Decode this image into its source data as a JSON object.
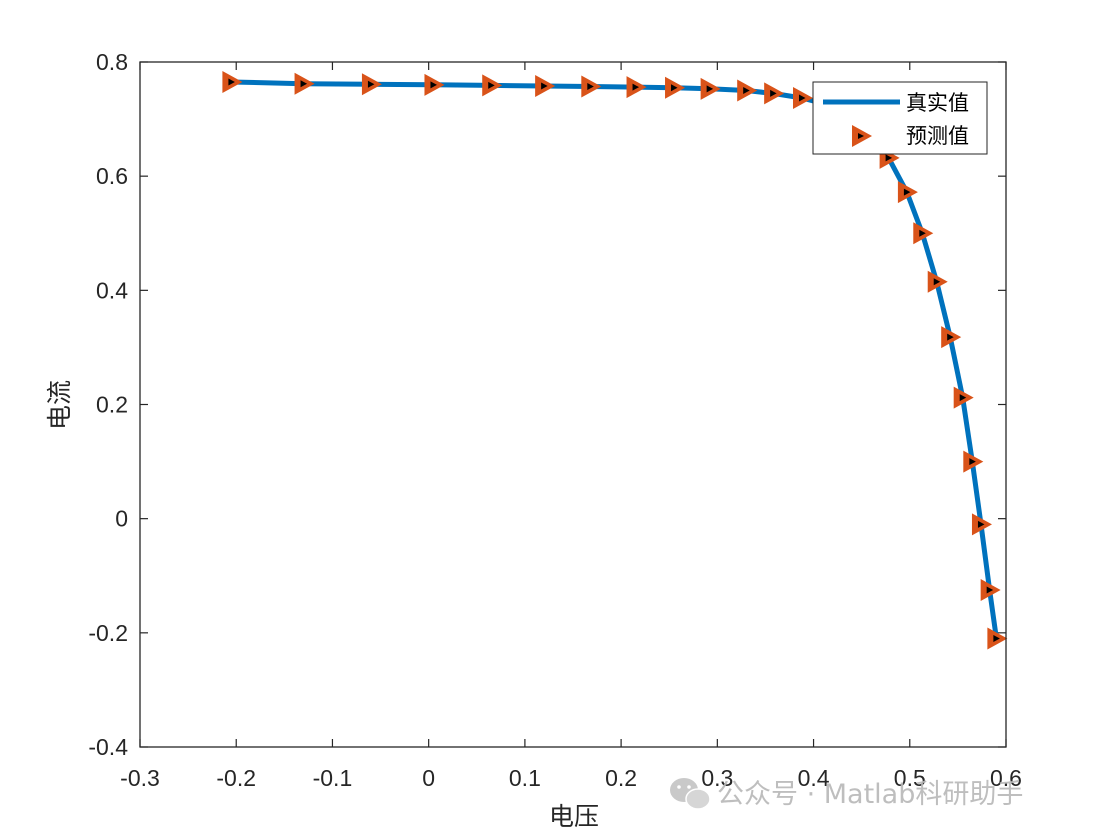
{
  "chart_data": {
    "type": "line",
    "title": "",
    "xlabel": "电压",
    "ylabel": "电流",
    "xlim": [
      -0.3,
      0.6
    ],
    "ylim": [
      -0.4,
      0.8
    ],
    "xticks": [
      "-0.3",
      "-0.2",
      "-0.1",
      "0",
      "0.1",
      "0.2",
      "0.3",
      "0.4",
      "0.5",
      "0.6"
    ],
    "yticks": [
      "-0.4",
      "-0.2",
      "0",
      "0.2",
      "0.4",
      "0.6",
      "0.8"
    ],
    "grid": false,
    "legend_position": "top-right",
    "series": [
      {
        "name": "真实值",
        "style": "line",
        "color": "#0072BD",
        "x": [
          -0.205,
          -0.13,
          -0.06,
          0.005,
          0.065,
          0.12,
          0.168,
          0.215,
          0.255,
          0.292,
          0.33,
          0.358,
          0.388,
          0.415,
          0.44,
          0.46,
          0.478,
          0.497,
          0.513,
          0.528,
          0.542,
          0.555,
          0.565,
          0.574,
          0.583,
          0.59
        ],
        "y": [
          0.765,
          0.762,
          0.761,
          0.76,
          0.759,
          0.758,
          0.757,
          0.756,
          0.755,
          0.753,
          0.75,
          0.745,
          0.737,
          0.725,
          0.705,
          0.675,
          0.632,
          0.572,
          0.5,
          0.415,
          0.318,
          0.212,
          0.1,
          -0.01,
          -0.125,
          -0.21
        ]
      },
      {
        "name": "预测值",
        "style": "marker",
        "marker": "triangle-right",
        "color": "#D95319",
        "x": [
          -0.205,
          -0.13,
          -0.06,
          0.005,
          0.065,
          0.12,
          0.168,
          0.215,
          0.255,
          0.292,
          0.33,
          0.358,
          0.388,
          0.415,
          0.44,
          0.46,
          0.478,
          0.497,
          0.513,
          0.528,
          0.542,
          0.555,
          0.565,
          0.574,
          0.583,
          0.59
        ],
        "y": [
          0.765,
          0.762,
          0.761,
          0.76,
          0.759,
          0.758,
          0.757,
          0.756,
          0.755,
          0.753,
          0.75,
          0.745,
          0.737,
          0.725,
          0.705,
          0.675,
          0.632,
          0.572,
          0.5,
          0.415,
          0.318,
          0.212,
          0.1,
          -0.01,
          -0.125,
          -0.21
        ]
      }
    ]
  },
  "watermark": {
    "text": "公众号 · Matlab科研助手",
    "icon": "wechat-icon"
  }
}
